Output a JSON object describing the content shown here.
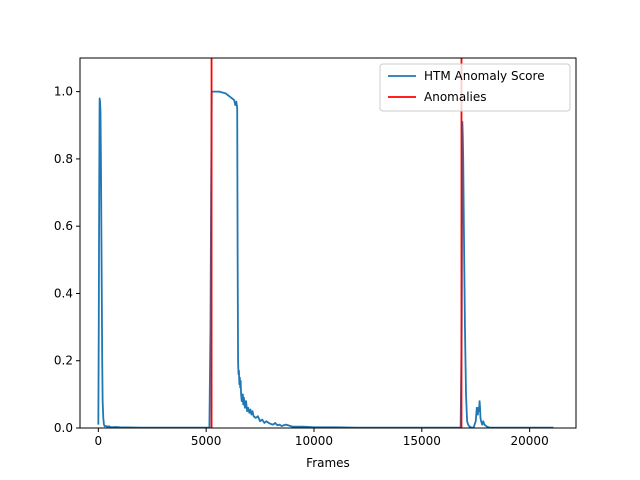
{
  "chart_data": {
    "type": "line",
    "title": "",
    "xlabel": "Frames",
    "ylabel": "",
    "xlim": [
      -850,
      22150
    ],
    "ylim": [
      0,
      1.1
    ],
    "xticks": [
      0,
      5000,
      10000,
      15000,
      20000
    ],
    "xtick_labels": [
      "0",
      "5000",
      "10000",
      "15000",
      "20000"
    ],
    "yticks": [
      0,
      0.2,
      0.4,
      0.6,
      0.8,
      1.0
    ],
    "ytick_labels": [
      "0.0",
      "0.2",
      "0.4",
      "0.6",
      "0.8",
      "1.0"
    ],
    "grid": false,
    "legend_position": "top-right",
    "series": [
      {
        "name": "HTM Anomaly Score",
        "color": "#1f77b4",
        "kind": "line",
        "x": [
          0,
          20,
          40,
          60,
          80,
          100,
          120,
          140,
          160,
          180,
          200,
          230,
          260,
          300,
          350,
          400,
          500,
          600,
          800,
          1000,
          2000,
          3000,
          4000,
          5000,
          5150,
          5200,
          5230,
          5260,
          5300,
          5600,
          5900,
          6000,
          6100,
          6200,
          6300,
          6350,
          6400,
          6420,
          6440,
          6460,
          6480,
          6500,
          6520,
          6540,
          6560,
          6580,
          6600,
          6620,
          6650,
          6700,
          6720,
          6750,
          6800,
          6850,
          6900,
          6950,
          7000,
          7050,
          7100,
          7150,
          7200,
          7300,
          7400,
          7500,
          7600,
          7700,
          7800,
          7900,
          8000,
          8100,
          8200,
          8300,
          8400,
          8500,
          8700,
          9000,
          9500,
          10000,
          11000,
          12000,
          13000,
          14000,
          15000,
          16000,
          16500,
          16700,
          16800,
          16850,
          16880,
          16900,
          16920,
          16950,
          17000,
          17050,
          17100,
          17150,
          17200,
          17300,
          17400,
          17500,
          17550,
          17600,
          17620,
          17650,
          17680,
          17700,
          17720,
          17750,
          17800,
          17850,
          17900,
          18000,
          18100,
          18200,
          18300,
          18500,
          19000,
          20000,
          21100
        ],
        "y": [
          0.01,
          0.3,
          0.7,
          0.98,
          0.97,
          0.94,
          0.8,
          0.6,
          0.4,
          0.2,
          0.08,
          0.03,
          0.01,
          0.005,
          0.006,
          0.004,
          0.005,
          0.002,
          0.003,
          0.002,
          0.001,
          0.001,
          0.001,
          0.001,
          0.001,
          0.3,
          0.7,
          1.0,
          1.0,
          1.0,
          0.995,
          0.99,
          0.985,
          0.98,
          0.975,
          0.96,
          0.97,
          0.96,
          0.95,
          0.5,
          0.2,
          0.16,
          0.17,
          0.13,
          0.15,
          0.12,
          0.14,
          0.1,
          0.08,
          0.1,
          0.07,
          0.09,
          0.06,
          0.08,
          0.05,
          0.06,
          0.045,
          0.055,
          0.04,
          0.05,
          0.035,
          0.03,
          0.035,
          0.02,
          0.025,
          0.015,
          0.02,
          0.015,
          0.012,
          0.01,
          0.015,
          0.008,
          0.01,
          0.006,
          0.01,
          0.004,
          0.004,
          0.002,
          0.002,
          0.001,
          0.001,
          0.001,
          0.001,
          0.001,
          0.001,
          0.001,
          0.001,
          0.3,
          0.91,
          0.87,
          0.8,
          0.6,
          0.3,
          0.1,
          0.02,
          0.01,
          0.005,
          0.001,
          0.001,
          0.02,
          0.06,
          0.04,
          0.06,
          0.05,
          0.08,
          0.06,
          0.03,
          0.02,
          0.01,
          0.02,
          0.01,
          0.005,
          0.002,
          0.001,
          0.001,
          0.001,
          0.001,
          0.001,
          0.001
        ]
      },
      {
        "name": "Anomalies",
        "color": "#ff0000",
        "kind": "vline",
        "x": [
          5250,
          16840
        ]
      }
    ]
  }
}
